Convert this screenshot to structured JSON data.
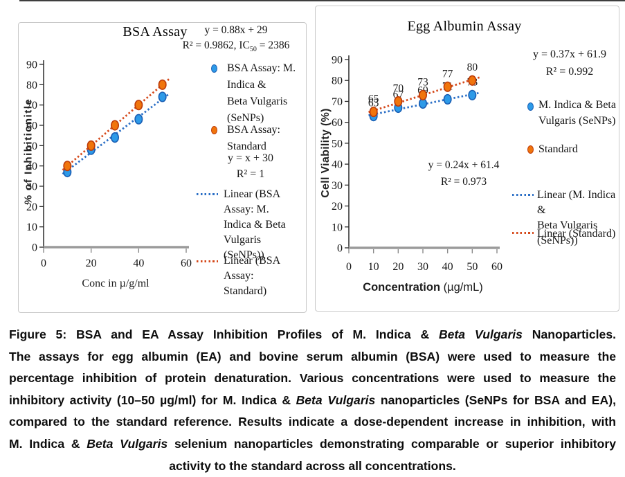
{
  "colors": {
    "series_blue_fill": "#2D9AE8",
    "series_blue_stroke": "#1A5FB4",
    "series_orange_fill": "#F0750C",
    "series_orange_stroke": "#BD3A08",
    "trend_blue": "#2B6FC6",
    "trend_orange": "#D5491B",
    "axis_line": "#2b2b2b",
    "x_axis_line": "#9b9b9b",
    "panel_border": "#c9c9c9",
    "text": "#141414"
  },
  "chart_data": [
    {
      "type": "scatter",
      "title": "BSA Assay",
      "xlabel": "Conc in µ/g/ml",
      "xlabel_segments": [
        {
          "text": "Conc in µ/g/ml",
          "bold": false
        }
      ],
      "ylabel": "% of Inhibitionitle",
      "xlim": [
        0,
        60
      ],
      "ylim": [
        0,
        90
      ],
      "xticks": [
        0,
        20,
        40,
        60
      ],
      "yticks": [
        0,
        10,
        20,
        30,
        40,
        50,
        60,
        70,
        80,
        90
      ],
      "grid": false,
      "legend_position": "right",
      "x": [
        10,
        20,
        30,
        40,
        50
      ],
      "series": [
        {
          "name": "BSA Assay: M. Indica & Beta Vulgaris (SeNPs)",
          "color_key": "blue",
          "values": [
            37,
            48,
            54,
            63,
            74
          ],
          "trend": {
            "slope": 0.88,
            "intercept": 29
          },
          "equation": "y = 0.88x + 29",
          "r2_text": "R² = 0.9862, IC50 = 2386"
        },
        {
          "name": "BSA Assay: Standard",
          "color_key": "orange",
          "values": [
            40,
            50,
            60,
            70,
            80
          ],
          "trend": {
            "slope": 1,
            "intercept": 30
          },
          "equation": "y = x + 30",
          "r2_text": "R² = 1"
        }
      ],
      "data_labels": false,
      "annotation": {
        "lines": [
          "y = 0.88x + 29",
          "R² = 0.9862, IC50 = 2386"
        ]
      },
      "legend": [
        {
          "swatch": "marker",
          "color_key": "blue",
          "lines": [
            "BSA Assay: M. Indica &",
            "Beta Vulgaris (SeNPs)"
          ]
        },
        {
          "swatch": "marker",
          "color_key": "orange",
          "lines": [
            "BSA Assay: Standard"
          ]
        },
        {
          "swatch": "none",
          "lines": [
            "y = x + 30",
            "R² = 1"
          ]
        },
        {
          "swatch": "line",
          "color_key": "blue",
          "lines": [
            "Linear (BSA Assay: M.",
            "Indica & Beta Vulgaris",
            "(SeNPs))"
          ]
        },
        {
          "swatch": "line",
          "color_key": "orange",
          "lines": [
            "Linear (BSA Assay:",
            "Standard)"
          ]
        }
      ]
    },
    {
      "type": "scatter",
      "title": "Egg Albumin Assay",
      "xlabel": "Concentration (µg/mL)",
      "xlabel_segments": [
        {
          "text": "Concentration",
          "bold": true
        },
        {
          "text": " (µg/mL)",
          "bold": false
        }
      ],
      "ylabel": "Cell Viability (%)",
      "xlim": [
        0,
        60
      ],
      "ylim": [
        0,
        90
      ],
      "xticks": [
        0,
        10,
        20,
        30,
        40,
        50,
        60
      ],
      "yticks": [
        0,
        10,
        20,
        30,
        40,
        50,
        60,
        70,
        80,
        90
      ],
      "grid": false,
      "legend_position": "right",
      "x": [
        10,
        20,
        30,
        40,
        50
      ],
      "series": [
        {
          "name": "M. Indica & Beta Vulgaris (SeNPs)",
          "color_key": "blue",
          "values": [
            63,
            67,
            69,
            71,
            73
          ],
          "trend": {
            "slope": 0.24,
            "intercept": 61.4
          },
          "equation": "y = 0.24x + 61.4",
          "r2_text": "R² = 0.973"
        },
        {
          "name": "Standard",
          "color_key": "orange",
          "values": [
            65,
            70,
            73,
            77,
            80
          ],
          "trend": {
            "slope": 0.37,
            "intercept": 61.9
          },
          "equation": "y = 0.37x + 61.9",
          "r2_text": "R² = 0.992"
        }
      ],
      "data_labels": true,
      "annotation": {
        "lines": [
          "y = 0.24x + 61.4",
          "R² = 0.973"
        ]
      },
      "legend": [
        {
          "swatch": "none",
          "lines": [
            "y = 0.37x + 61.9",
            "R² = 0.992"
          ]
        },
        {
          "swatch": "marker",
          "color_key": "blue",
          "lines": [
            "M. Indica & Beta",
            "Vulgaris (SeNPs)"
          ]
        },
        {
          "swatch": "marker",
          "color_key": "orange",
          "lines": [
            "Standard"
          ]
        },
        {
          "swatch": "line",
          "color_key": "blue",
          "lines": [
            "Linear (M. Indica &",
            "Beta Vulgaris (SeNPs))"
          ]
        },
        {
          "swatch": "line",
          "color_key": "orange",
          "lines": [
            "Linear (Standard)"
          ]
        }
      ]
    }
  ],
  "caption": {
    "lines": [
      {
        "align": "justify",
        "segments": [
          {
            "text": "Figure 5: BSA and EA Assay Inhibition Profiles of M. Indica & "
          },
          {
            "text": "Beta Vulgaris",
            "italic": true
          },
          {
            "text": " Nanoparticles."
          }
        ]
      },
      {
        "align": "justify",
        "segments": [
          {
            "text": "The assays for egg albumin (EA) and bovine serum albumin (BSA) were used to measure the"
          }
        ]
      },
      {
        "align": "justify",
        "segments": [
          {
            "text": "percentage inhibition of protein denaturation. Various concentrations were used to measure the"
          }
        ]
      },
      {
        "align": "justify",
        "segments": [
          {
            "text": "inhibitory activity (10–50 µg/ml) for M. Indica & "
          },
          {
            "text": "Beta Vulgaris",
            "italic": true
          },
          {
            "text": " nanoparticles (SeNPs for BSA and EA),"
          }
        ]
      },
      {
        "align": "justify",
        "segments": [
          {
            "text": "compared to the standard reference. Results indicate a dose-dependent increase in inhibition, with"
          }
        ]
      },
      {
        "align": "justify",
        "segments": [
          {
            "text": "M. Indica & "
          },
          {
            "text": "Beta Vulgaris",
            "italic": true
          },
          {
            "text": " selenium nanoparticles demonstrating comparable or superior inhibitory"
          }
        ]
      },
      {
        "align": "center",
        "segments": [
          {
            "text": "activity to the standard across all concentrations."
          }
        ]
      }
    ]
  }
}
